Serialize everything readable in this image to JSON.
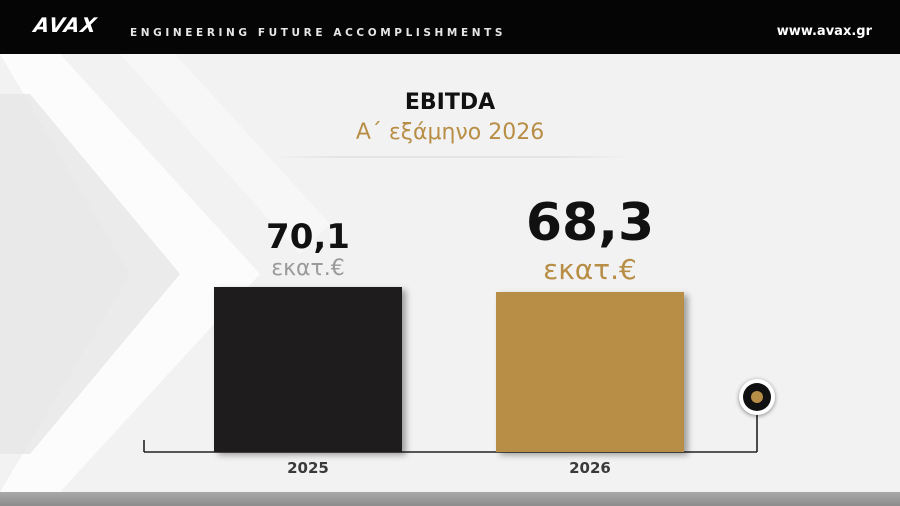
{
  "header": {
    "logo": "AVAX",
    "tagline": "ENGINEERING FUTURE ACCOMPLISHMENTS",
    "website": "www.avax.gr"
  },
  "chart_data": {
    "type": "bar",
    "title": "EBITDA",
    "subtitle": "Α΄ εξάμηνο 2026",
    "categories": [
      "2025",
      "2026"
    ],
    "values": [
      70.1,
      68.3
    ],
    "value_labels": [
      "70,1",
      "68,3"
    ],
    "unit": "εκατ.€",
    "bar_colors": [
      "#1e1c1d",
      "#b88e46"
    ],
    "ylim": [
      0,
      75
    ],
    "grid": false,
    "legend": "none"
  },
  "colors": {
    "accent": "#b88e46",
    "dark": "#1e1c1d",
    "topbar": "#050505"
  }
}
